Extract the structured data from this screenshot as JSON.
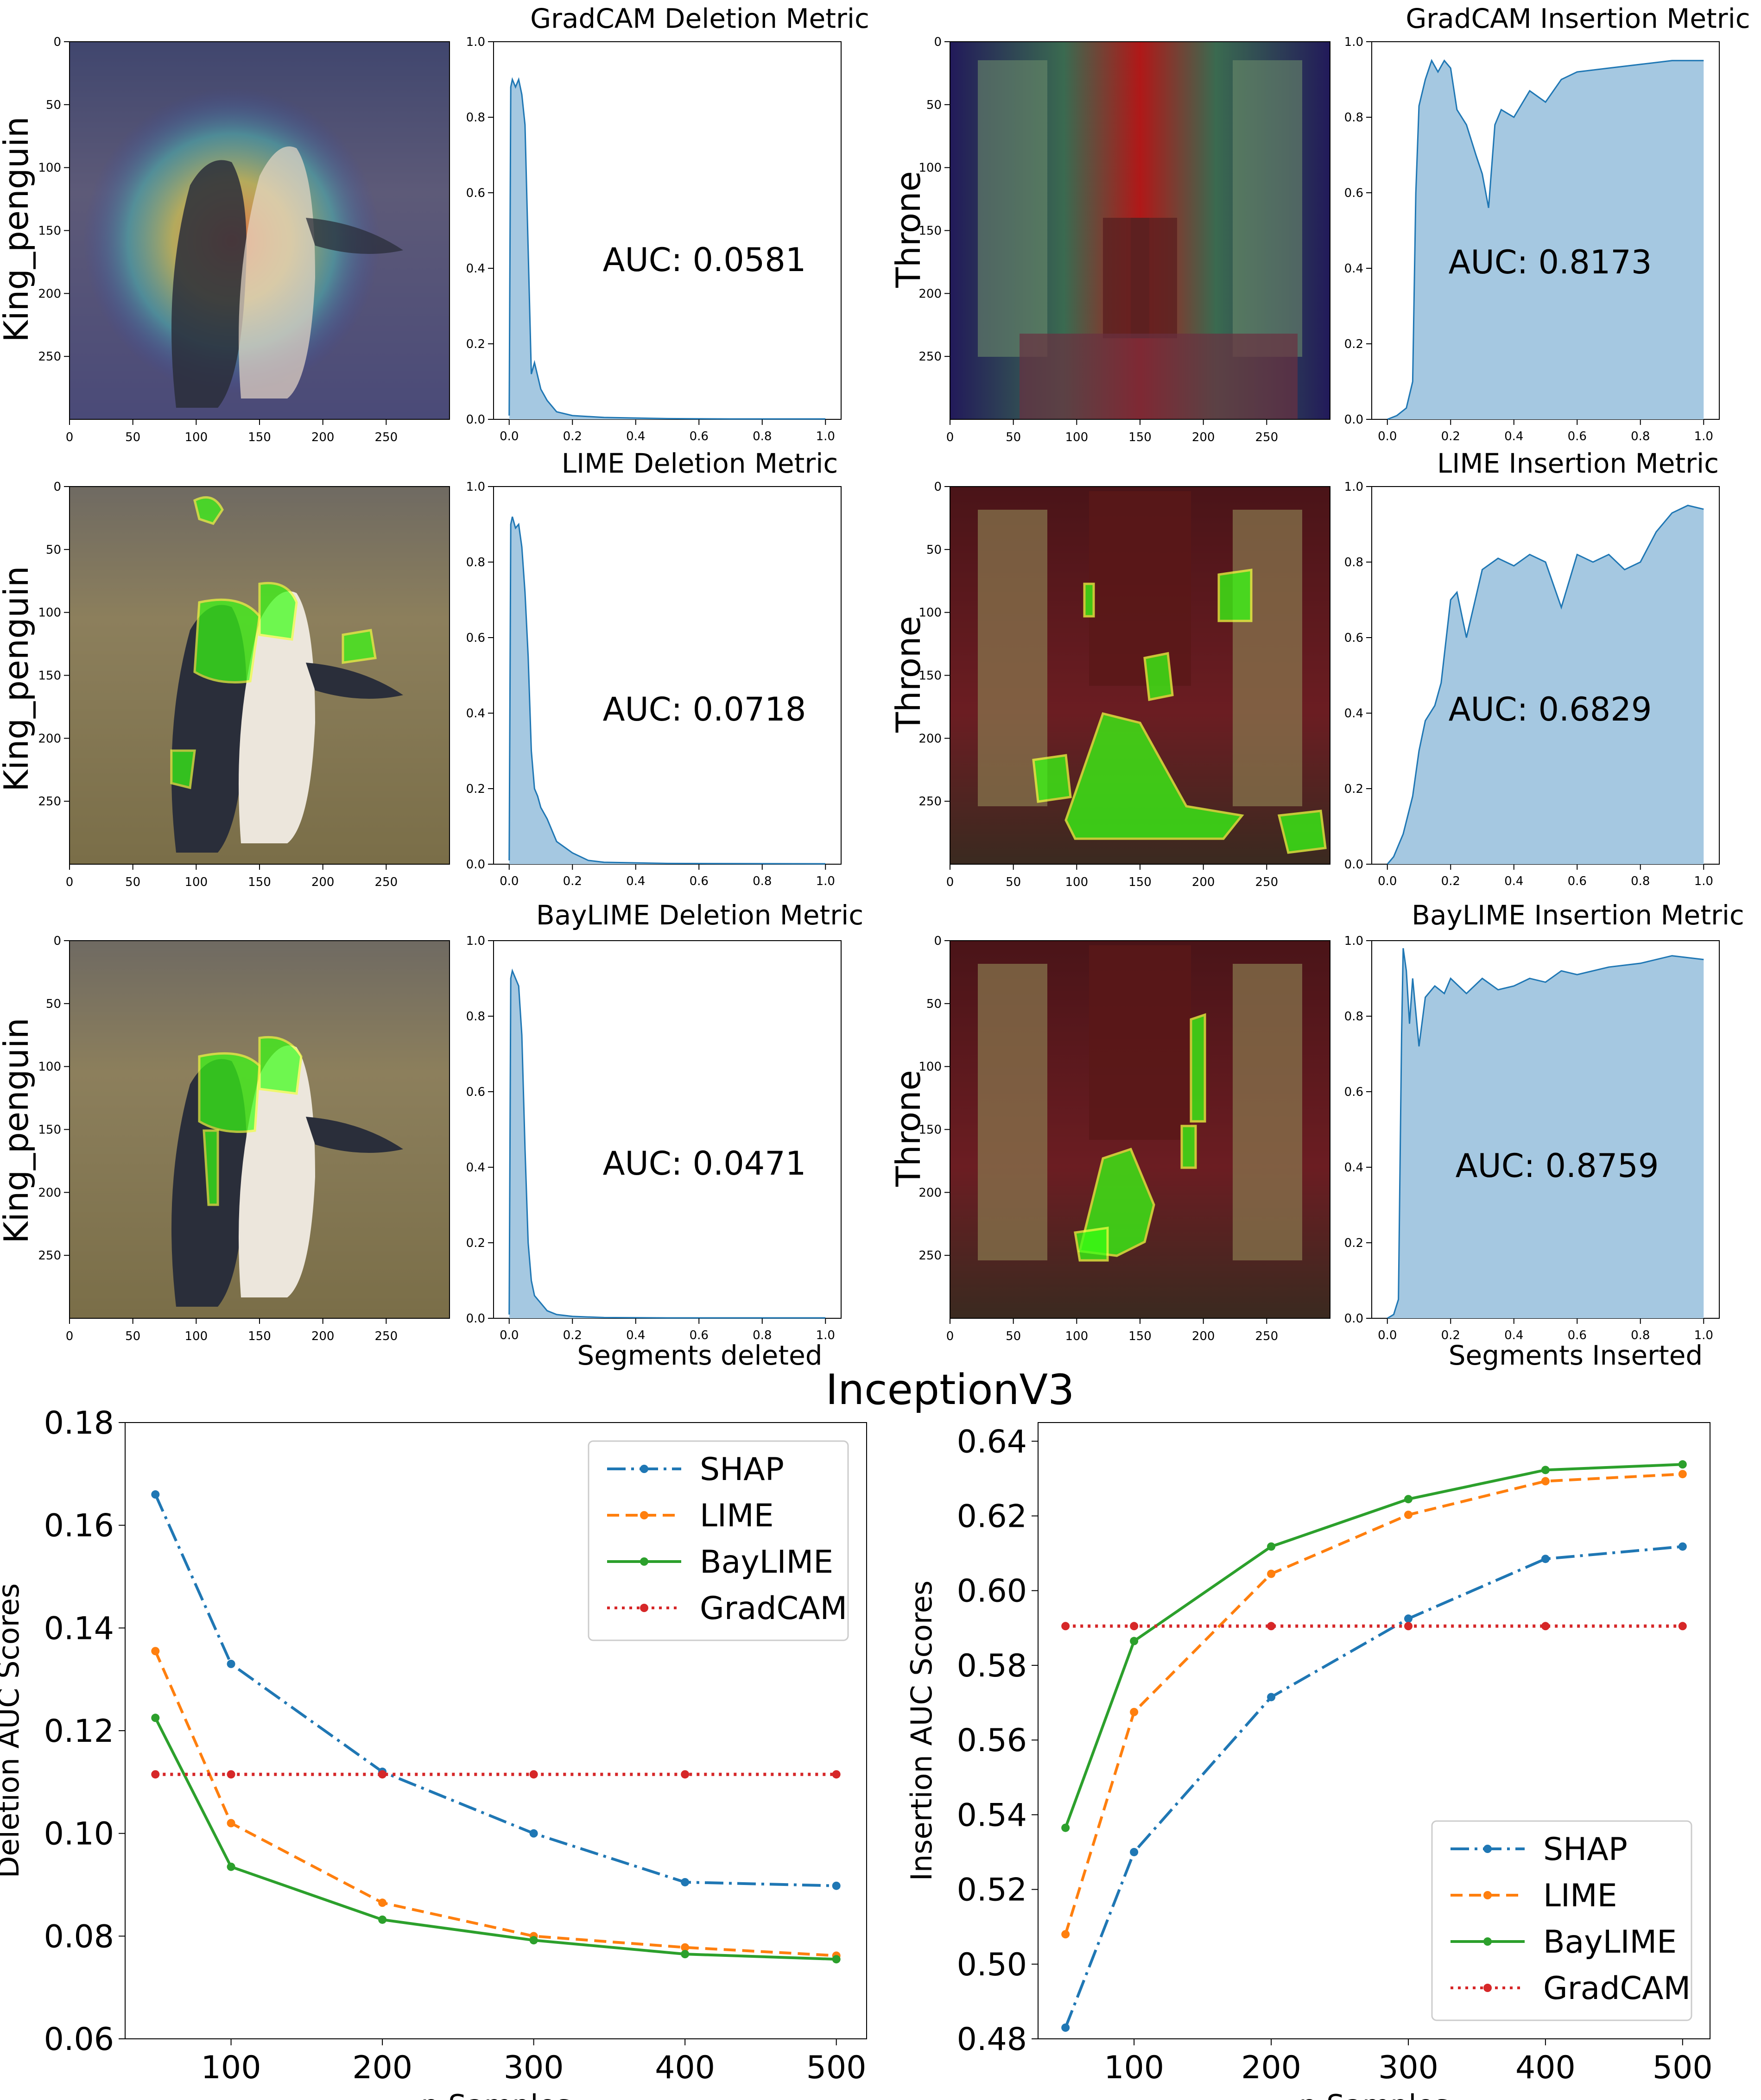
{
  "figure_title": "InceptionV3",
  "colors": {
    "area_fill": "#a5c8e1",
    "area_line": "#1f77b4",
    "shap": "#1f77b4",
    "lime": "#ff7f0e",
    "baylime": "#2ca02c",
    "gradcam": "#d62728",
    "highlight": "#39ff14"
  },
  "panel_rows": [
    {
      "left": {
        "row_label": "King_penguin",
        "title": "GradCAM Deletion Metric",
        "auc": "AUC: 0.0581",
        "xlabel": ""
      },
      "right": {
        "row_label": "Throne",
        "title": "GradCAM Insertion Metric",
        "auc": "AUC: 0.8173",
        "xlabel": ""
      }
    },
    {
      "left": {
        "row_label": "King_penguin",
        "title": "LIME Deletion Metric",
        "auc": "AUC: 0.0718",
        "xlabel": ""
      },
      "right": {
        "row_label": "Throne",
        "title": "LIME Insertion Metric",
        "auc": "AUC: 0.6829",
        "xlabel": ""
      }
    },
    {
      "left": {
        "row_label": "King_penguin",
        "title": "BayLIME Deletion Metric",
        "auc": "AUC: 0.0471",
        "xlabel": "Segments deleted"
      },
      "right": {
        "row_label": "Throne",
        "title": "BayLIME Insertion Metric",
        "auc": "AUC: 0.8759",
        "xlabel": "Segments Inserted"
      }
    }
  ],
  "image_axis_ticks": {
    "x": [
      "0",
      "50",
      "100",
      "150",
      "200",
      "250"
    ],
    "y": [
      "0",
      "50",
      "100",
      "150",
      "200",
      "250"
    ]
  },
  "metric_axis_ticks": {
    "x": [
      "0.0",
      "0.2",
      "0.4",
      "0.6",
      "0.8",
      "1.0"
    ],
    "y": [
      "0.0",
      "0.2",
      "0.4",
      "0.6",
      "0.8",
      "1.0"
    ]
  },
  "chart_data": [
    {
      "type": "area",
      "title": "GradCAM Deletion Metric",
      "annotation": "AUC: 0.0581",
      "xlim": [
        0,
        1
      ],
      "ylim": [
        0,
        1
      ],
      "x": [
        0,
        0.005,
        0.01,
        0.02,
        0.03,
        0.04,
        0.05,
        0.06,
        0.07,
        0.08,
        0.1,
        0.12,
        0.15,
        0.2,
        0.3,
        0.5,
        0.7,
        1.0
      ],
      "y": [
        0.01,
        0.88,
        0.9,
        0.88,
        0.9,
        0.86,
        0.78,
        0.45,
        0.12,
        0.15,
        0.08,
        0.05,
        0.02,
        0.01,
        0.005,
        0.002,
        0.001,
        0.001
      ]
    },
    {
      "type": "area",
      "title": "GradCAM Insertion Metric",
      "annotation": "AUC: 0.8173",
      "xlim": [
        0,
        1
      ],
      "ylim": [
        0,
        1
      ],
      "x": [
        0,
        0.03,
        0.06,
        0.08,
        0.09,
        0.1,
        0.12,
        0.14,
        0.16,
        0.18,
        0.2,
        0.22,
        0.25,
        0.28,
        0.3,
        0.32,
        0.34,
        0.36,
        0.4,
        0.45,
        0.5,
        0.55,
        0.6,
        0.7,
        0.8,
        0.9,
        1.0
      ],
      "y": [
        0,
        0.01,
        0.03,
        0.1,
        0.6,
        0.83,
        0.9,
        0.95,
        0.92,
        0.95,
        0.93,
        0.82,
        0.78,
        0.7,
        0.65,
        0.56,
        0.78,
        0.82,
        0.8,
        0.87,
        0.84,
        0.9,
        0.92,
        0.93,
        0.94,
        0.95,
        0.95
      ]
    },
    {
      "type": "area",
      "title": "LIME Deletion Metric",
      "annotation": "AUC: 0.0718",
      "xlim": [
        0,
        1
      ],
      "ylim": [
        0,
        1
      ],
      "x": [
        0,
        0.005,
        0.01,
        0.02,
        0.03,
        0.04,
        0.05,
        0.06,
        0.07,
        0.08,
        0.09,
        0.1,
        0.12,
        0.15,
        0.2,
        0.25,
        0.3,
        0.5,
        1.0
      ],
      "y": [
        0.01,
        0.9,
        0.92,
        0.89,
        0.9,
        0.84,
        0.72,
        0.55,
        0.3,
        0.2,
        0.18,
        0.15,
        0.12,
        0.06,
        0.03,
        0.01,
        0.005,
        0.002,
        0.001
      ]
    },
    {
      "type": "area",
      "title": "LIME Insertion Metric",
      "annotation": "AUC: 0.6829",
      "xlim": [
        0,
        1
      ],
      "ylim": [
        0,
        1
      ],
      "x": [
        0,
        0.02,
        0.05,
        0.08,
        0.1,
        0.12,
        0.15,
        0.17,
        0.2,
        0.22,
        0.25,
        0.3,
        0.35,
        0.4,
        0.45,
        0.5,
        0.55,
        0.6,
        0.65,
        0.7,
        0.75,
        0.8,
        0.85,
        0.9,
        0.95,
        1.0
      ],
      "y": [
        0,
        0.02,
        0.08,
        0.18,
        0.3,
        0.38,
        0.42,
        0.48,
        0.7,
        0.72,
        0.6,
        0.78,
        0.81,
        0.79,
        0.82,
        0.8,
        0.68,
        0.82,
        0.8,
        0.82,
        0.78,
        0.8,
        0.88,
        0.93,
        0.95,
        0.94
      ]
    },
    {
      "type": "area",
      "title": "BayLIME Deletion Metric",
      "annotation": "AUC: 0.0471",
      "xlabel": "Segments deleted",
      "xlim": [
        0,
        1
      ],
      "ylim": [
        0,
        1
      ],
      "x": [
        0,
        0.005,
        0.01,
        0.02,
        0.03,
        0.04,
        0.05,
        0.06,
        0.07,
        0.08,
        0.1,
        0.12,
        0.15,
        0.2,
        0.3,
        0.5,
        1.0
      ],
      "y": [
        0.01,
        0.9,
        0.92,
        0.9,
        0.88,
        0.75,
        0.45,
        0.2,
        0.1,
        0.06,
        0.04,
        0.02,
        0.01,
        0.005,
        0.002,
        0.001,
        0.001
      ]
    },
    {
      "type": "area",
      "title": "BayLIME Insertion Metric",
      "annotation": "AUC: 0.8759",
      "xlabel": "Segments Inserted",
      "xlim": [
        0,
        1
      ],
      "ylim": [
        0,
        1
      ],
      "x": [
        0,
        0.02,
        0.035,
        0.045,
        0.05,
        0.06,
        0.07,
        0.08,
        0.1,
        0.12,
        0.15,
        0.18,
        0.2,
        0.25,
        0.3,
        0.35,
        0.4,
        0.45,
        0.5,
        0.55,
        0.6,
        0.7,
        0.8,
        0.9,
        1.0
      ],
      "y": [
        0,
        0.01,
        0.05,
        0.75,
        0.98,
        0.92,
        0.78,
        0.9,
        0.72,
        0.85,
        0.88,
        0.86,
        0.9,
        0.86,
        0.9,
        0.87,
        0.88,
        0.9,
        0.89,
        0.92,
        0.91,
        0.93,
        0.94,
        0.96,
        0.95
      ]
    },
    {
      "type": "line",
      "title": "",
      "xlabel": "n Samples",
      "ylabel": "Deletion AUC Scores",
      "xlim": [
        30,
        520
      ],
      "ylim": [
        0.06,
        0.18
      ],
      "legend": "top-right",
      "xticks": [
        100,
        200,
        300,
        400,
        500
      ],
      "yticks": [
        "0.06",
        "0.08",
        "0.10",
        "0.12",
        "0.14",
        "0.16",
        "0.18"
      ],
      "x": [
        50,
        100,
        200,
        300,
        400,
        500
      ],
      "series": [
        {
          "name": "SHAP",
          "style": "dashdot",
          "values": [
            0.166,
            0.133,
            0.112,
            0.1,
            0.0905,
            0.0898
          ]
        },
        {
          "name": "LIME",
          "style": "dashed",
          "values": [
            0.1355,
            0.102,
            0.0865,
            0.08,
            0.0778,
            0.0762
          ]
        },
        {
          "name": "BayLIME",
          "style": "solid",
          "values": [
            0.1225,
            0.0935,
            0.0832,
            0.0792,
            0.0765,
            0.0755
          ]
        },
        {
          "name": "GradCAM",
          "style": "dotted",
          "values": [
            0.1115,
            0.1115,
            0.1115,
            0.1115,
            0.1115,
            0.1115
          ]
        }
      ]
    },
    {
      "type": "line",
      "title": "",
      "xlabel": "n Samples",
      "ylabel": "Insertion AUC Scores",
      "xlim": [
        30,
        520
      ],
      "ylim": [
        0.48,
        0.645
      ],
      "legend": "bottom-right",
      "xticks": [
        100,
        200,
        300,
        400,
        500
      ],
      "yticks": [
        "0.48",
        "0.50",
        "0.52",
        "0.54",
        "0.56",
        "0.58",
        "0.60",
        "0.62",
        "0.64"
      ],
      "x": [
        50,
        100,
        200,
        300,
        400,
        500
      ],
      "series": [
        {
          "name": "SHAP",
          "style": "dashdot",
          "values": [
            0.483,
            0.53,
            0.5715,
            0.5925,
            0.6085,
            0.6118
          ]
        },
        {
          "name": "LIME",
          "style": "dashed",
          "values": [
            0.508,
            0.5675,
            0.6045,
            0.6203,
            0.6293,
            0.6312
          ]
        },
        {
          "name": "BayLIME",
          "style": "solid",
          "values": [
            0.5365,
            0.5865,
            0.6118,
            0.6245,
            0.6323,
            0.6338
          ]
        },
        {
          "name": "GradCAM",
          "style": "dotted",
          "values": [
            0.5905,
            0.5905,
            0.5905,
            0.5905,
            0.5905,
            0.5905
          ]
        }
      ]
    }
  ]
}
